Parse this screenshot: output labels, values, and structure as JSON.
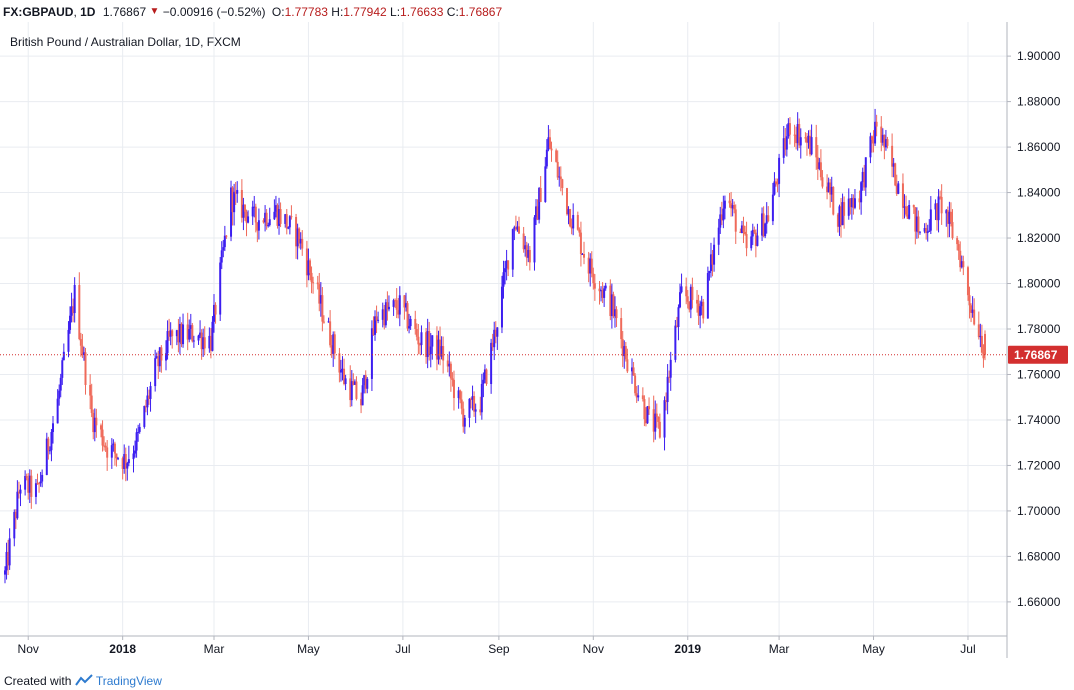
{
  "header": {
    "symbol": "FX:GBPAUD",
    "interval": "1D",
    "last": "1.76867",
    "change": "−0.00916 (−0.52%)",
    "open_label": "O:",
    "open": "1.77783",
    "high_label": "H:",
    "high": "1.77942",
    "low_label": "L:",
    "low": "1.76633",
    "close_label": "C:",
    "close": "1.76867"
  },
  "footer": {
    "created_with": "Created with",
    "brand": "TradingView"
  },
  "colors": {
    "up": "#3c1ef0",
    "down": "#ef6a5a",
    "price_line": "#d32f2f",
    "grid": "#e9ecf1",
    "axis": "#b2b5be",
    "text": "#131722"
  },
  "chart_data": {
    "type": "candlestick",
    "title": "British Pound / Australian Dollar, 1D, FXCM",
    "ylim": [
      1.645,
      1.915
    ],
    "yticks": [
      1.66,
      1.68,
      1.7,
      1.72,
      1.74,
      1.76,
      1.78,
      1.8,
      1.82,
      1.84,
      1.86,
      1.88,
      1.9
    ],
    "ytick_labels": [
      "1.66000",
      "1.68000",
      "1.70000",
      "1.72000",
      "1.74000",
      "1.76000",
      "1.78000",
      "1.80000",
      "1.82000",
      "1.84000",
      "1.86000",
      "1.88000",
      "1.90000"
    ],
    "xticks": [
      {
        "label": "Nov",
        "date": "2017-11-01",
        "bold": false
      },
      {
        "label": "2018",
        "date": "2018-01-01",
        "bold": true
      },
      {
        "label": "Mar",
        "date": "2018-03-01",
        "bold": false
      },
      {
        "label": "May",
        "date": "2018-05-01",
        "bold": false
      },
      {
        "label": "Jul",
        "date": "2018-07-01",
        "bold": false
      },
      {
        "label": "Sep",
        "date": "2018-09-01",
        "bold": false
      },
      {
        "label": "Nov",
        "date": "2018-11-01",
        "bold": false
      },
      {
        "label": "2019",
        "date": "2019-01-01",
        "bold": true
      },
      {
        "label": "Mar",
        "date": "2019-03-01",
        "bold": false
      },
      {
        "label": "May",
        "date": "2019-05-01",
        "bold": false
      },
      {
        "label": "Jul",
        "date": "2019-07-01",
        "bold": false
      }
    ],
    "date_range": [
      "2017-10-17",
      "2019-07-12"
    ],
    "last_price": 1.76867,
    "last_price_label": "1.76867",
    "close_anchors": [
      {
        "date": "2017-10-17",
        "close": 1.672
      },
      {
        "date": "2017-10-27",
        "close": 1.712
      },
      {
        "date": "2017-11-07",
        "close": 1.708
      },
      {
        "date": "2017-11-20",
        "close": 1.748
      },
      {
        "date": "2017-12-01",
        "close": 1.795
      },
      {
        "date": "2017-12-12",
        "close": 1.742
      },
      {
        "date": "2017-12-22",
        "close": 1.728
      },
      {
        "date": "2018-01-03",
        "close": 1.722
      },
      {
        "date": "2018-01-11",
        "close": 1.732
      },
      {
        "date": "2018-01-22",
        "close": 1.762
      },
      {
        "date": "2018-02-01",
        "close": 1.776
      },
      {
        "date": "2018-02-16",
        "close": 1.778
      },
      {
        "date": "2018-02-27",
        "close": 1.775
      },
      {
        "date": "2018-03-12",
        "close": 1.838
      },
      {
        "date": "2018-03-27",
        "close": 1.828
      },
      {
        "date": "2018-04-10",
        "close": 1.832
      },
      {
        "date": "2018-04-25",
        "close": 1.82
      },
      {
        "date": "2018-05-08",
        "close": 1.792
      },
      {
        "date": "2018-05-24",
        "close": 1.758
      },
      {
        "date": "2018-06-04",
        "close": 1.748
      },
      {
        "date": "2018-06-14",
        "close": 1.786
      },
      {
        "date": "2018-06-29",
        "close": 1.79
      },
      {
        "date": "2018-07-12",
        "close": 1.775
      },
      {
        "date": "2018-07-26",
        "close": 1.77
      },
      {
        "date": "2018-08-09",
        "close": 1.742
      },
      {
        "date": "2018-08-20",
        "close": 1.748
      },
      {
        "date": "2018-08-30",
        "close": 1.78
      },
      {
        "date": "2018-09-11",
        "close": 1.828
      },
      {
        "date": "2018-09-21",
        "close": 1.812
      },
      {
        "date": "2018-10-03",
        "close": 1.862
      },
      {
        "date": "2018-10-15",
        "close": 1.835
      },
      {
        "date": "2018-10-29",
        "close": 1.808
      },
      {
        "date": "2018-11-13",
        "close": 1.79
      },
      {
        "date": "2018-11-26",
        "close": 1.76
      },
      {
        "date": "2018-12-07",
        "close": 1.74
      },
      {
        "date": "2018-12-14",
        "close": 1.735
      },
      {
        "date": "2018-12-28",
        "close": 1.795
      },
      {
        "date": "2019-01-11",
        "close": 1.79
      },
      {
        "date": "2019-01-25",
        "close": 1.84
      },
      {
        "date": "2019-02-08",
        "close": 1.815
      },
      {
        "date": "2019-02-22",
        "close": 1.83
      },
      {
        "date": "2019-03-08",
        "close": 1.87
      },
      {
        "date": "2019-03-22",
        "close": 1.86
      },
      {
        "date": "2019-04-08",
        "close": 1.83
      },
      {
        "date": "2019-04-22",
        "close": 1.84
      },
      {
        "date": "2019-05-03",
        "close": 1.87
      },
      {
        "date": "2019-05-16",
        "close": 1.845
      },
      {
        "date": "2019-05-31",
        "close": 1.822
      },
      {
        "date": "2019-06-14",
        "close": 1.835
      },
      {
        "date": "2019-06-25",
        "close": 1.815
      },
      {
        "date": "2019-07-02",
        "close": 1.793
      },
      {
        "date": "2019-07-09",
        "close": 1.778
      },
      {
        "date": "2019-07-12",
        "close": 1.76867
      }
    ],
    "last_candle": {
      "open": 1.77783,
      "high": 1.77942,
      "low": 1.76633,
      "close": 1.76867
    },
    "grid": true
  }
}
